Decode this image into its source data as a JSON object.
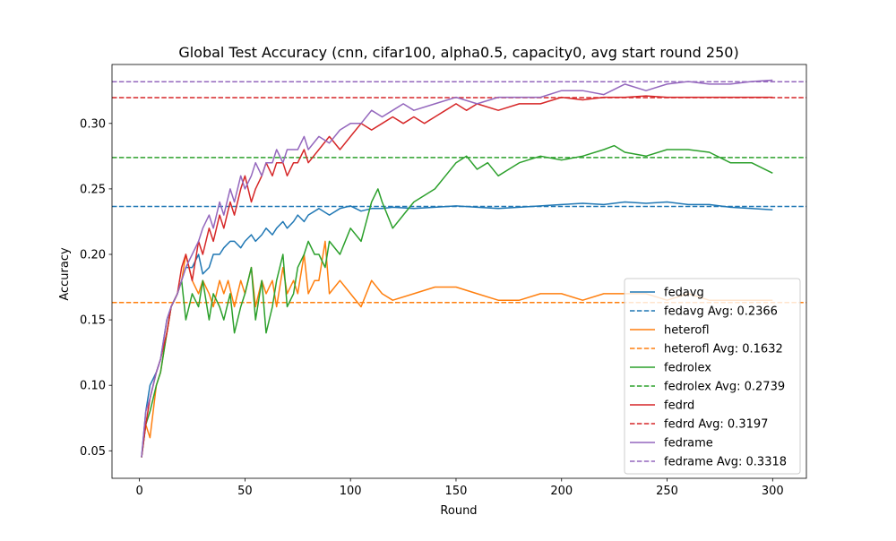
{
  "chart_data": {
    "type": "line",
    "title": "Global Test Accuracy (cnn, cifar100, alpha0.5, capacity0, avg start round 250)",
    "xlabel": "Round",
    "ylabel": "Accuracy",
    "xlim": [
      -13,
      316
    ],
    "ylim": [
      0.029,
      0.345
    ],
    "xticks": [
      0,
      50,
      100,
      150,
      200,
      250,
      300
    ],
    "yticks": [
      0.05,
      0.1,
      0.15,
      0.2,
      0.25,
      0.3
    ],
    "ytick_labels": [
      "0.05",
      "0.10",
      "0.15",
      "0.20",
      "0.25",
      "0.30"
    ],
    "legend_position": "lower right",
    "grid": false,
    "series": [
      {
        "name": "fedavg",
        "color": "#1f77b4",
        "x": [
          1,
          3,
          5,
          8,
          10,
          13,
          15,
          18,
          20,
          22,
          25,
          28,
          30,
          33,
          35,
          38,
          40,
          43,
          45,
          48,
          50,
          53,
          55,
          58,
          60,
          63,
          65,
          68,
          70,
          73,
          75,
          78,
          80,
          85,
          90,
          95,
          100,
          105,
          110,
          115,
          120,
          130,
          140,
          150,
          160,
          170,
          180,
          190,
          200,
          210,
          220,
          230,
          240,
          250,
          260,
          270,
          280,
          290,
          300
        ],
        "y": [
          0.045,
          0.08,
          0.1,
          0.11,
          0.12,
          0.15,
          0.16,
          0.17,
          0.18,
          0.19,
          0.19,
          0.2,
          0.185,
          0.19,
          0.2,
          0.2,
          0.205,
          0.21,
          0.21,
          0.205,
          0.21,
          0.215,
          0.21,
          0.215,
          0.22,
          0.215,
          0.22,
          0.225,
          0.22,
          0.225,
          0.23,
          0.225,
          0.23,
          0.235,
          0.23,
          0.235,
          0.237,
          0.233,
          0.235,
          0.235,
          0.236,
          0.235,
          0.236,
          0.237,
          0.236,
          0.235,
          0.236,
          0.237,
          0.238,
          0.239,
          0.238,
          0.24,
          0.239,
          0.24,
          0.238,
          0.238,
          0.236,
          0.235,
          0.234
        ]
      },
      {
        "name": "fedavg Avg: 0.2366",
        "color": "#1f77b4",
        "dashed": true,
        "x": [
          -13,
          316
        ],
        "y": [
          0.2366,
          0.2366
        ]
      },
      {
        "name": "heterofl",
        "color": "#ff7f0e",
        "x": [
          1,
          3,
          5,
          8,
          10,
          13,
          15,
          18,
          20,
          22,
          25,
          28,
          30,
          33,
          35,
          38,
          40,
          42,
          45,
          48,
          50,
          53,
          55,
          58,
          60,
          63,
          65,
          68,
          70,
          73,
          75,
          78,
          80,
          83,
          85,
          88,
          90,
          95,
          100,
          105,
          110,
          115,
          120,
          130,
          140,
          150,
          160,
          170,
          180,
          190,
          200,
          210,
          220,
          230,
          240,
          250,
          260,
          270,
          280,
          290,
          300
        ],
        "y": [
          0.045,
          0.07,
          0.06,
          0.1,
          0.11,
          0.14,
          0.16,
          0.17,
          0.18,
          0.2,
          0.18,
          0.17,
          0.18,
          0.17,
          0.16,
          0.18,
          0.17,
          0.18,
          0.16,
          0.18,
          0.17,
          0.19,
          0.16,
          0.18,
          0.17,
          0.18,
          0.16,
          0.19,
          0.17,
          0.18,
          0.17,
          0.2,
          0.17,
          0.18,
          0.18,
          0.21,
          0.17,
          0.18,
          0.17,
          0.16,
          0.18,
          0.17,
          0.165,
          0.17,
          0.175,
          0.175,
          0.17,
          0.165,
          0.165,
          0.17,
          0.17,
          0.165,
          0.17,
          0.17,
          0.17,
          0.165,
          0.17,
          0.165,
          0.165,
          0.165,
          0.165
        ]
      },
      {
        "name": "heterofl Avg: 0.1632",
        "color": "#ff7f0e",
        "dashed": true,
        "x": [
          -13,
          316
        ],
        "y": [
          0.1632,
          0.1632
        ]
      },
      {
        "name": "fedrolex",
        "color": "#2ca02c",
        "x": [
          1,
          3,
          5,
          8,
          10,
          13,
          15,
          18,
          20,
          22,
          25,
          28,
          30,
          33,
          35,
          38,
          40,
          43,
          45,
          48,
          50,
          53,
          55,
          58,
          60,
          63,
          65,
          68,
          70,
          73,
          75,
          78,
          80,
          83,
          85,
          88,
          90,
          95,
          100,
          105,
          110,
          113,
          115,
          120,
          125,
          130,
          135,
          140,
          145,
          150,
          155,
          160,
          165,
          170,
          175,
          180,
          190,
          200,
          210,
          220,
          225,
          230,
          240,
          250,
          260,
          270,
          280,
          290,
          300
        ],
        "y": [
          0.045,
          0.07,
          0.08,
          0.1,
          0.11,
          0.14,
          0.16,
          0.17,
          0.18,
          0.15,
          0.17,
          0.16,
          0.18,
          0.15,
          0.17,
          0.16,
          0.15,
          0.17,
          0.14,
          0.16,
          0.17,
          0.19,
          0.15,
          0.18,
          0.14,
          0.16,
          0.18,
          0.2,
          0.16,
          0.17,
          0.19,
          0.2,
          0.21,
          0.2,
          0.2,
          0.19,
          0.21,
          0.2,
          0.22,
          0.21,
          0.24,
          0.25,
          0.24,
          0.22,
          0.23,
          0.24,
          0.245,
          0.25,
          0.26,
          0.27,
          0.275,
          0.265,
          0.27,
          0.26,
          0.265,
          0.27,
          0.275,
          0.272,
          0.275,
          0.28,
          0.283,
          0.278,
          0.275,
          0.28,
          0.28,
          0.278,
          0.27,
          0.27,
          0.262
        ]
      },
      {
        "name": "fedrolex Avg: 0.2739",
        "color": "#2ca02c",
        "dashed": true,
        "x": [
          -13,
          316
        ],
        "y": [
          0.2739,
          0.2739
        ]
      },
      {
        "name": "fedrd",
        "color": "#d62728",
        "x": [
          1,
          3,
          5,
          8,
          10,
          13,
          15,
          18,
          20,
          22,
          25,
          28,
          30,
          33,
          35,
          38,
          40,
          43,
          45,
          48,
          50,
          53,
          55,
          58,
          60,
          63,
          65,
          68,
          70,
          73,
          75,
          78,
          80,
          85,
          90,
          95,
          100,
          105,
          110,
          115,
          120,
          125,
          130,
          135,
          140,
          145,
          150,
          155,
          160,
          170,
          180,
          190,
          200,
          210,
          220,
          230,
          240,
          250,
          260,
          270,
          280,
          290,
          300
        ],
        "y": [
          0.045,
          0.07,
          0.09,
          0.11,
          0.12,
          0.14,
          0.16,
          0.17,
          0.19,
          0.2,
          0.18,
          0.21,
          0.2,
          0.22,
          0.21,
          0.23,
          0.22,
          0.24,
          0.23,
          0.25,
          0.26,
          0.24,
          0.25,
          0.26,
          0.27,
          0.26,
          0.27,
          0.27,
          0.26,
          0.27,
          0.27,
          0.28,
          0.27,
          0.28,
          0.29,
          0.28,
          0.29,
          0.3,
          0.295,
          0.3,
          0.305,
          0.3,
          0.305,
          0.3,
          0.305,
          0.31,
          0.315,
          0.31,
          0.315,
          0.31,
          0.315,
          0.315,
          0.32,
          0.318,
          0.32,
          0.32,
          0.321,
          0.32,
          0.32,
          0.32,
          0.32,
          0.32,
          0.32
        ]
      },
      {
        "name": "fedrd Avg: 0.3197",
        "color": "#d62728",
        "dashed": true,
        "x": [
          -13,
          316
        ],
        "y": [
          0.3197,
          0.3197
        ]
      },
      {
        "name": "fedrame",
        "color": "#9467bd",
        "x": [
          1,
          3,
          5,
          8,
          10,
          13,
          15,
          18,
          20,
          22,
          25,
          28,
          30,
          33,
          35,
          38,
          40,
          43,
          45,
          48,
          50,
          53,
          55,
          58,
          60,
          63,
          65,
          68,
          70,
          73,
          75,
          78,
          80,
          85,
          90,
          95,
          100,
          105,
          110,
          115,
          120,
          125,
          130,
          140,
          150,
          160,
          170,
          180,
          190,
          200,
          210,
          220,
          230,
          240,
          250,
          260,
          270,
          280,
          290,
          300
        ],
        "y": [
          0.045,
          0.08,
          0.09,
          0.11,
          0.12,
          0.15,
          0.16,
          0.17,
          0.18,
          0.19,
          0.2,
          0.21,
          0.22,
          0.23,
          0.22,
          0.24,
          0.23,
          0.25,
          0.24,
          0.26,
          0.25,
          0.26,
          0.27,
          0.26,
          0.27,
          0.27,
          0.28,
          0.27,
          0.28,
          0.28,
          0.28,
          0.29,
          0.28,
          0.29,
          0.285,
          0.295,
          0.3,
          0.3,
          0.31,
          0.305,
          0.31,
          0.315,
          0.31,
          0.315,
          0.32,
          0.315,
          0.32,
          0.32,
          0.32,
          0.325,
          0.325,
          0.322,
          0.33,
          0.325,
          0.33,
          0.332,
          0.33,
          0.33,
          0.332,
          0.333
        ]
      },
      {
        "name": "fedrame Avg: 0.3318",
        "color": "#9467bd",
        "dashed": true,
        "x": [
          -13,
          316
        ],
        "y": [
          0.3318,
          0.3318
        ]
      }
    ]
  }
}
